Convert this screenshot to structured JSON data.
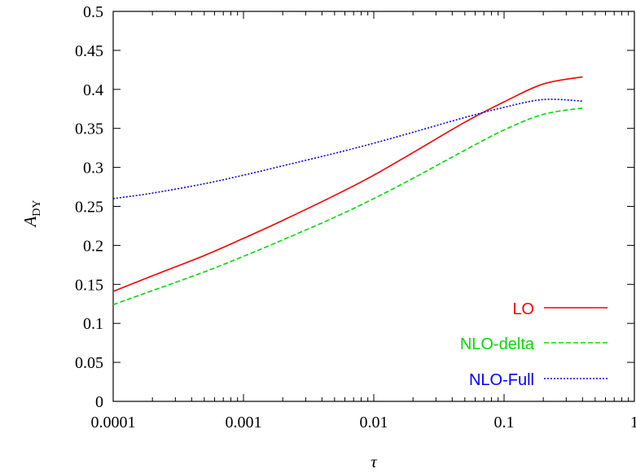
{
  "chart_data": {
    "type": "line",
    "title": "",
    "xlabel": "τ",
    "ylabel": "A",
    "ylabel_subscript": "DY",
    "xscale": "log",
    "xlim": [
      0.0001,
      1
    ],
    "ylim": [
      0,
      0.5
    ],
    "xticks": [
      0.0001,
      0.001,
      0.01,
      0.1,
      1
    ],
    "xtick_labels": [
      "0.0001",
      "0.001",
      "0.01",
      "0.1",
      "1"
    ],
    "yticks": [
      0,
      0.05,
      0.1,
      0.15,
      0.2,
      0.25,
      0.3,
      0.35,
      0.4,
      0.45,
      0.5
    ],
    "ytick_labels": [
      "0",
      "0.05",
      "0.1",
      "0.15",
      "0.2",
      "0.25",
      "0.3",
      "0.35",
      "0.4",
      "0.45",
      "0.5"
    ],
    "grid": false,
    "legend_position": "bottom-right",
    "series": [
      {
        "name": "LO",
        "color": "#ff0000",
        "dash": "solid",
        "x": [
          0.0001,
          0.0002,
          0.0005,
          0.001,
          0.002,
          0.005,
          0.01,
          0.02,
          0.05,
          0.1,
          0.2,
          0.4
        ],
        "y": [
          0.141,
          0.161,
          0.187,
          0.209,
          0.232,
          0.264,
          0.29,
          0.319,
          0.358,
          0.384,
          0.407,
          0.416
        ]
      },
      {
        "name": "NLO-delta",
        "color": "#00dd00",
        "dash": "dashed",
        "x": [
          0.0001,
          0.0002,
          0.0005,
          0.001,
          0.002,
          0.005,
          0.01,
          0.02,
          0.05,
          0.1,
          0.2,
          0.4
        ],
        "y": [
          0.124,
          0.142,
          0.166,
          0.186,
          0.207,
          0.236,
          0.26,
          0.286,
          0.322,
          0.348,
          0.368,
          0.376
        ]
      },
      {
        "name": "NLO-Full",
        "color": "#0000ff",
        "dash": "dotted",
        "x": [
          0.0001,
          0.0002,
          0.0005,
          0.001,
          0.002,
          0.005,
          0.01,
          0.02,
          0.05,
          0.1,
          0.2,
          0.4
        ],
        "y": [
          0.26,
          0.267,
          0.279,
          0.29,
          0.302,
          0.318,
          0.331,
          0.345,
          0.364,
          0.377,
          0.387,
          0.385
        ]
      }
    ]
  }
}
